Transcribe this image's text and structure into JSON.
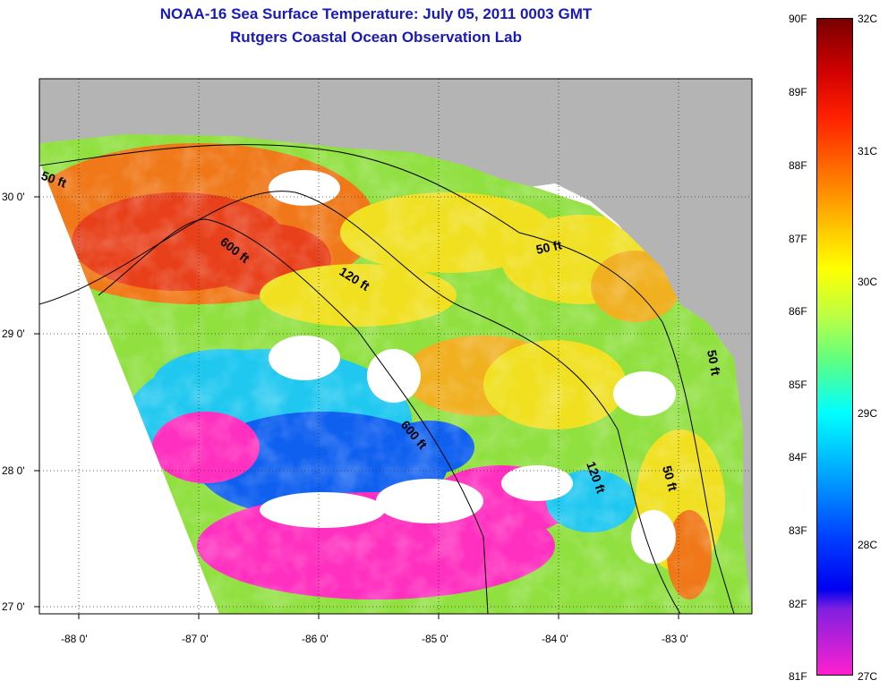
{
  "title_line1": "NOAA-16 Sea Surface Temperature:  July 05, 2011 0003 GMT",
  "title_line2": "Rutgers Coastal Ocean Observation Lab",
  "map": {
    "lon_ticks": [
      "-88 0'",
      "-87 0'",
      "-86 0'",
      "-85 0'",
      "-84 0'",
      "-83 0'"
    ],
    "lat_ticks": [
      "30 0'",
      "29 0'",
      "28 0'",
      "27 0'"
    ],
    "contour_labels": [
      "50 ft",
      "600 ft",
      "120 ft",
      "50 ft",
      "600 ft",
      "120 ft",
      "50 ft",
      "50 ft"
    ],
    "colors": {
      "land": "#b4b4b4",
      "no_data": "#ffffff",
      "warm": "#e8401a",
      "hot": "#f07818",
      "mid": "#f0e020",
      "green": "#90e040",
      "cool": "#20c8f0",
      "blue": "#1060f0",
      "cold": "#ff30c0"
    }
  },
  "colorbar": {
    "f_labels": [
      "90F",
      "89F",
      "88F",
      "87F",
      "86F",
      "85F",
      "84F",
      "83F",
      "82F",
      "81F"
    ],
    "c_labels": [
      "32C",
      "31C",
      "30C",
      "29C",
      "28C",
      "27C"
    ],
    "f_range": [
      81,
      90
    ],
    "c_range": [
      27,
      32
    ]
  }
}
